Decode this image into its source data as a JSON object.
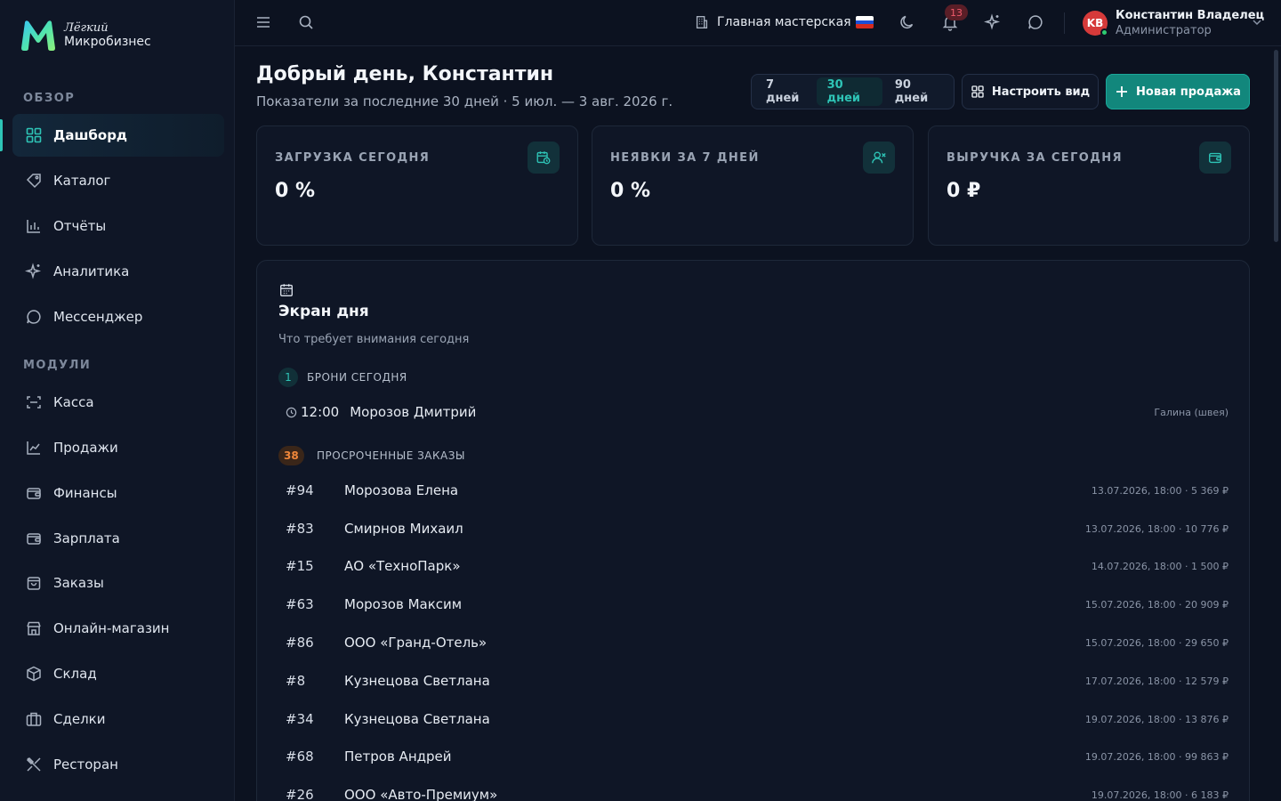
{
  "brand": {
    "line1": "Лёгкий",
    "line2": "Микробизнес"
  },
  "sidebar": {
    "sections": [
      "ОБЗОР",
      "МОДУЛИ"
    ],
    "overview": [
      {
        "label": "Дашборд",
        "icon": "dashboard-icon"
      },
      {
        "label": "Каталог",
        "icon": "catalog-icon"
      },
      {
        "label": "Отчёты",
        "icon": "reports-icon"
      },
      {
        "label": "Аналитика",
        "icon": "sparkle-icon"
      },
      {
        "label": "Мессенджер",
        "icon": "chat-icon"
      }
    ],
    "modules": [
      {
        "label": "Касса",
        "icon": "scan-icon"
      },
      {
        "label": "Продажи",
        "icon": "chart-line-icon"
      },
      {
        "label": "Финансы",
        "icon": "wallet-icon"
      },
      {
        "label": "Зарплата",
        "icon": "wallet-icon"
      },
      {
        "label": "Заказы",
        "icon": "bag-icon"
      },
      {
        "label": "Онлайн-магазин",
        "icon": "store-icon"
      },
      {
        "label": "Склад",
        "icon": "box-icon"
      },
      {
        "label": "Сделки",
        "icon": "briefcase-icon"
      },
      {
        "label": "Ресторан",
        "icon": "utensils-icon"
      }
    ]
  },
  "topbar": {
    "workshop": "Главная мастерская",
    "notifications_count": "13",
    "user": {
      "initials": "KB",
      "name": "Константин Владелец",
      "role": "Администратор"
    }
  },
  "header": {
    "greeting": "Добрый день, Константин",
    "subtitle": "Показатели за последние 30 дней · 5 июл. — 3 авг. 2026 г.",
    "periods": [
      "7 дней",
      "30 дней",
      "90 дней"
    ],
    "active_period": "30 дней",
    "customize_label": "Настроить вид",
    "new_sale_label": "Новая продажа"
  },
  "kpis": [
    {
      "label": "ЗАГРУЗКА СЕГОДНЯ",
      "value": "0 %",
      "icon": "calendar-clock-icon"
    },
    {
      "label": "НЕЯВКИ ЗА 7 ДНЕЙ",
      "value": "0 %",
      "icon": "user-x-icon"
    },
    {
      "label": "ВЫРУЧКА ЗА СЕГОДНЯ",
      "value": "0 ₽",
      "icon": "wallet-icon"
    }
  ],
  "day_screen": {
    "title": "Экран дня",
    "subtitle": "Что требует внимания сегодня",
    "bookings": {
      "count": "1",
      "label": "БРОНИ СЕГОДНЯ",
      "items": [
        {
          "time": "12:00",
          "client": "Морозов Дмитрий",
          "staff": "Галина (швея)"
        }
      ]
    },
    "overdue": {
      "count": "38",
      "label": "ПРОСРОЧЕННЫЕ ЗАКАЗЫ",
      "items": [
        {
          "num": "#94",
          "client": "Морозова Елена",
          "meta": "13.07.2026, 18:00 · 5 369 ₽"
        },
        {
          "num": "#83",
          "client": "Смирнов Михаил",
          "meta": "13.07.2026, 18:00 · 10 776 ₽"
        },
        {
          "num": "#15",
          "client": "АО «ТехноПарк»",
          "meta": "14.07.2026, 18:00 · 1 500 ₽"
        },
        {
          "num": "#63",
          "client": "Морозов Максим",
          "meta": "15.07.2026, 18:00 · 20 909 ₽"
        },
        {
          "num": "#86",
          "client": "ООО «Гранд-Отель»",
          "meta": "15.07.2026, 18:00 · 29 650 ₽"
        },
        {
          "num": "#8",
          "client": "Кузнецова Светлана",
          "meta": "17.07.2026, 18:00 · 12 579 ₽"
        },
        {
          "num": "#34",
          "client": "Кузнецова Светлана",
          "meta": "19.07.2026, 18:00 · 13 876 ₽"
        },
        {
          "num": "#68",
          "client": "Петров Андрей",
          "meta": "19.07.2026, 18:00 · 99 863 ₽"
        },
        {
          "num": "#26",
          "client": "ООО «Авто-Премиум»",
          "meta": "19.07.2026, 18:00 · 6 183 ₽"
        }
      ]
    }
  },
  "colors": {
    "accent": "#2ec4b6",
    "primary_button": "#12877c",
    "danger": "#d63a3a",
    "overdue": "#f0873a"
  }
}
